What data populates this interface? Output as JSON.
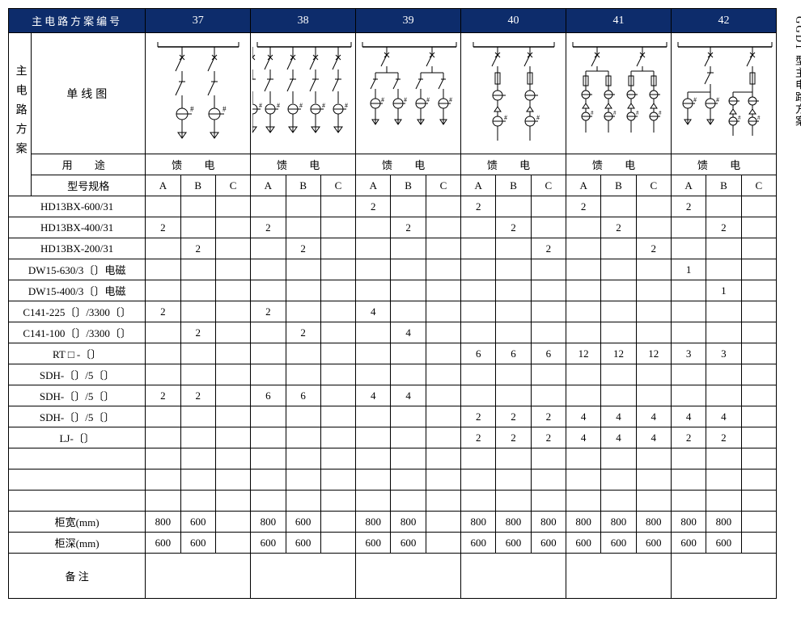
{
  "sideTitle": "GGD1 型主电路方案",
  "header": {
    "title": "主电路方案编号",
    "schemes": [
      "37",
      "38",
      "39",
      "40",
      "41",
      "42"
    ]
  },
  "leftVLabel": "主电路方案",
  "diagramLabel": "单线图",
  "usageLabel": "用 途",
  "usageValue": "馈 电",
  "modelLabel": "型号规格",
  "abc": [
    "A",
    "B",
    "C"
  ],
  "rows": [
    {
      "label": "HD13BX-600/31",
      "v": [
        "",
        "",
        "",
        "",
        "",
        "",
        "2",
        "",
        "",
        "2",
        "",
        "",
        "2",
        "",
        "",
        "2",
        "",
        ""
      ]
    },
    {
      "label": "HD13BX-400/31",
      "v": [
        "2",
        "",
        "",
        "2",
        "",
        "",
        "",
        "2",
        "",
        "",
        "2",
        "",
        "",
        "2",
        "",
        "",
        "2",
        ""
      ]
    },
    {
      "label": "HD13BX-200/31",
      "v": [
        "",
        "2",
        "",
        "",
        "2",
        "",
        "",
        "",
        "",
        "",
        "",
        "2",
        "",
        "",
        "2",
        "",
        "",
        ""
      ]
    },
    {
      "label": "DW15-630/3〔〕电磁",
      "v": [
        "",
        "",
        "",
        "",
        "",
        "",
        "",
        "",
        "",
        "",
        "",
        "",
        "",
        "",
        "",
        "1",
        "",
        ""
      ]
    },
    {
      "label": "DW15-400/3〔〕电磁",
      "v": [
        "",
        "",
        "",
        "",
        "",
        "",
        "",
        "",
        "",
        "",
        "",
        "",
        "",
        "",
        "",
        "",
        "1",
        ""
      ]
    },
    {
      "label": "C141-225〔〕/3300〔〕",
      "v": [
        "2",
        "",
        "",
        "2",
        "",
        "",
        "4",
        "",
        "",
        "",
        "",
        "",
        "",
        "",
        "",
        "",
        "",
        ""
      ]
    },
    {
      "label": "C141-100〔〕/3300〔〕",
      "v": [
        "",
        "2",
        "",
        "",
        "2",
        "",
        "",
        "4",
        "",
        "",
        "",
        "",
        "",
        "",
        "",
        "",
        "",
        ""
      ]
    },
    {
      "label": "RT □ -〔〕",
      "v": [
        "",
        "",
        "",
        "",
        "",
        "",
        "",
        "",
        "",
        "6",
        "6",
        "6",
        "12",
        "12",
        "12",
        "3",
        "3",
        ""
      ]
    },
    {
      "label": "SDH-〔〕/5〔〕",
      "v": [
        "",
        "",
        "",
        "",
        "",
        "",
        "",
        "",
        "",
        "",
        "",
        "",
        "",
        "",
        "",
        "",
        "",
        ""
      ]
    },
    {
      "label": "SDH-〔〕/5〔〕",
      "v": [
        "2",
        "2",
        "",
        "6",
        "6",
        "",
        "4",
        "4",
        "",
        "",
        "",
        "",
        "",
        "",
        "",
        "",
        "",
        ""
      ]
    },
    {
      "label": "SDH-〔〕/5〔〕",
      "v": [
        "",
        "",
        "",
        "",
        "",
        "",
        "",
        "",
        "",
        "2",
        "2",
        "2",
        "4",
        "4",
        "4",
        "4",
        "4",
        ""
      ]
    },
    {
      "label": "LJ-〔〕",
      "v": [
        "",
        "",
        "",
        "",
        "",
        "",
        "",
        "",
        "",
        "2",
        "2",
        "2",
        "4",
        "4",
        "4",
        "2",
        "2",
        ""
      ]
    },
    {
      "label": "",
      "v": [
        "",
        "",
        "",
        "",
        "",
        "",
        "",
        "",
        "",
        "",
        "",
        "",
        "",
        "",
        "",
        "",
        "",
        ""
      ]
    },
    {
      "label": "",
      "v": [
        "",
        "",
        "",
        "",
        "",
        "",
        "",
        "",
        "",
        "",
        "",
        "",
        "",
        "",
        "",
        "",
        "",
        ""
      ]
    },
    {
      "label": "",
      "v": [
        "",
        "",
        "",
        "",
        "",
        "",
        "",
        "",
        "",
        "",
        "",
        "",
        "",
        "",
        "",
        "",
        "",
        ""
      ]
    },
    {
      "label": "柜宽(mm)",
      "v": [
        "800",
        "600",
        "",
        "800",
        "600",
        "",
        "800",
        "800",
        "",
        "800",
        "800",
        "800",
        "800",
        "800",
        "800",
        "800",
        "800",
        ""
      ]
    },
    {
      "label": "柜深(mm)",
      "v": [
        "600",
        "600",
        "",
        "600",
        "600",
        "",
        "600",
        "600",
        "",
        "600",
        "600",
        "600",
        "600",
        "600",
        "600",
        "600",
        "600",
        ""
      ]
    }
  ],
  "remarkLabel": "备 注",
  "colors": {
    "headerBg": "#0d2c6b",
    "headerFg": "#ffffff",
    "border": "#000000",
    "bg": "#ffffff"
  },
  "diagrams": {
    "37": {
      "type": "branch2-switch-ct",
      "branches": 2
    },
    "38": {
      "type": "branch4-switch-ct",
      "branches": 4
    },
    "39": {
      "type": "tree2x2-switch-ct",
      "branches": 4
    },
    "40": {
      "type": "branch2-fuse-2ct",
      "branches": 2
    },
    "41": {
      "type": "branch4-fuse-2ct",
      "branches": 4
    },
    "42": {
      "type": "mixed-switch-fuse",
      "branches": 4
    }
  }
}
